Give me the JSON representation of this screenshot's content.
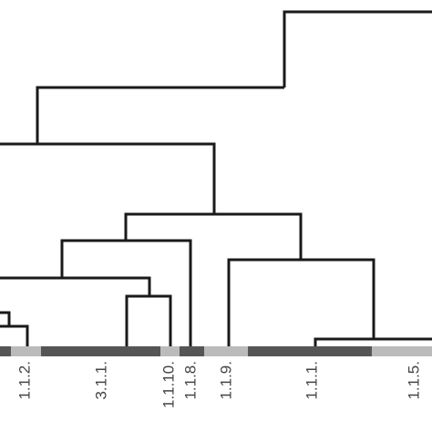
{
  "leaf_labels": [
    "1.1.2.",
    "3.1.1.",
    "1.1.10.",
    "1.1.8.",
    "1.1.9.",
    "1.1.1.",
    "1.1.5."
  ]
}
